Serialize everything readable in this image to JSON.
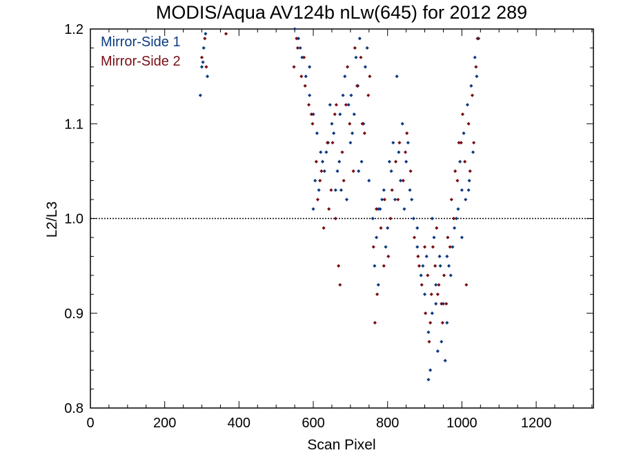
{
  "chart_data": {
    "type": "scatter",
    "title": "MODIS/Aqua AV124b nLw(645) for 2012 289",
    "xlabel": "Scan Pixel",
    "ylabel": "L2/L3",
    "xlim": [
      0,
      1354
    ],
    "ylim": [
      0.8,
      1.2
    ],
    "x_ticks": [
      0,
      200,
      400,
      600,
      800,
      1000,
      1200
    ],
    "x_tick_labels": [
      "0",
      "200",
      "400",
      "600",
      "800",
      "1000",
      "1200"
    ],
    "y_ticks": [
      0.8,
      0.9,
      1.0,
      1.1,
      1.2
    ],
    "y_tick_labels": [
      "0.8",
      "0.9",
      "1.0",
      "1.1",
      "1.2"
    ],
    "reference_line": 1.0,
    "legend_position": "top-left",
    "series": [
      {
        "name": "Mirror-Side 1",
        "color": "#0a3a82",
        "points": [
          [
            296,
            1.13
          ],
          [
            300,
            1.16
          ],
          [
            305,
            1.18
          ],
          [
            310,
            1.195
          ],
          [
            315,
            1.15
          ],
          [
            303,
            1.165
          ],
          [
            560,
            1.19
          ],
          [
            570,
            1.17
          ],
          [
            580,
            1.15
          ],
          [
            590,
            1.13
          ],
          [
            600,
            1.11
          ],
          [
            610,
            1.09
          ],
          [
            620,
            1.07
          ],
          [
            630,
            1.05
          ],
          [
            640,
            1.08
          ],
          [
            650,
            1.1
          ],
          [
            660,
            1.03
          ],
          [
            670,
            1.06
          ],
          [
            680,
            1.13
          ],
          [
            690,
            1.02
          ],
          [
            700,
            1.08
          ],
          [
            710,
            1.11
          ],
          [
            720,
            1.14
          ],
          [
            730,
            1.06
          ],
          [
            740,
            1.16
          ],
          [
            750,
            1.04
          ],
          [
            600,
            1.01
          ],
          [
            615,
            1.03
          ],
          [
            625,
            1.06
          ],
          [
            645,
            1.12
          ],
          [
            655,
            1.09
          ],
          [
            665,
            1.05
          ],
          [
            675,
            1.03
          ],
          [
            685,
            1.15
          ],
          [
            695,
            1.12
          ],
          [
            705,
            1.09
          ],
          [
            715,
            1.17
          ],
          [
            725,
            1.19
          ],
          [
            735,
            1.1
          ],
          [
            745,
            1.18
          ],
          [
            550,
            1.2
          ],
          [
            565,
            1.18
          ],
          [
            590,
            1.16
          ],
          [
            605,
            1.04
          ],
          [
            635,
            1.07
          ],
          [
            672,
            1.11
          ],
          [
            702,
            1.13
          ],
          [
            722,
            1.05
          ],
          [
            760,
            1.0
          ],
          [
            770,
            0.98
          ],
          [
            780,
            1.01
          ],
          [
            790,
            1.03
          ],
          [
            800,
            0.99
          ],
          [
            810,
            1.05
          ],
          [
            820,
            1.02
          ],
          [
            830,
            1.07
          ],
          [
            840,
            1.1
          ],
          [
            850,
            1.06
          ],
          [
            860,
            1.03
          ],
          [
            870,
            1.0
          ],
          [
            765,
            0.95
          ],
          [
            775,
            0.93
          ],
          [
            785,
            1.02
          ],
          [
            795,
            0.97
          ],
          [
            805,
            1.06
          ],
          [
            815,
            1.08
          ],
          [
            825,
            1.15
          ],
          [
            835,
            1.04
          ],
          [
            845,
            1.01
          ],
          [
            855,
            1.08
          ],
          [
            865,
            1.02
          ],
          [
            775,
            1.01
          ],
          [
            880,
            0.97
          ],
          [
            890,
            0.94
          ],
          [
            900,
            0.92
          ],
          [
            910,
            0.88
          ],
          [
            915,
            0.84
          ],
          [
            920,
            0.9
          ],
          [
            930,
            0.93
          ],
          [
            940,
            0.96
          ],
          [
            950,
            0.91
          ],
          [
            960,
            0.89
          ],
          [
            970,
            0.94
          ],
          [
            980,
            0.99
          ],
          [
            990,
            1.01
          ],
          [
            1000,
            0.98
          ],
          [
            1010,
            1.02
          ],
          [
            1020,
            1.04
          ],
          [
            1030,
            1.07
          ],
          [
            905,
            0.96
          ],
          [
            925,
            0.98
          ],
          [
            935,
            0.86
          ],
          [
            945,
            0.87
          ],
          [
            955,
            0.85
          ],
          [
            965,
            0.95
          ],
          [
            975,
            0.97
          ],
          [
            985,
            1.0
          ],
          [
            995,
            1.06
          ],
          [
            1005,
            1.09
          ],
          [
            1015,
            1.12
          ],
          [
            1025,
            1.14
          ],
          [
            1035,
            1.17
          ],
          [
            1045,
            1.19
          ],
          [
            910,
            0.83
          ],
          [
            920,
            1.0
          ],
          [
            942,
            0.95
          ],
          [
            1018,
            1.03
          ],
          [
            880,
            0.99
          ],
          [
            895,
            0.95
          ],
          [
            930,
            0.91
          ],
          [
            960,
            0.96
          ],
          [
            1000,
            1.03
          ],
          [
            1040,
            1.15
          ]
        ]
      },
      {
        "name": "Mirror-Side 2",
        "color": "#7a0c14",
        "points": [
          [
            300,
            1.17
          ],
          [
            308,
            1.19
          ],
          [
            312,
            1.16
          ],
          [
            365,
            1.195
          ],
          [
            548,
            1.16
          ],
          [
            558,
            1.18
          ],
          [
            568,
            1.15
          ],
          [
            578,
            1.14
          ],
          [
            588,
            1.12
          ],
          [
            598,
            1.1
          ],
          [
            608,
            1.06
          ],
          [
            618,
            1.04
          ],
          [
            628,
            0.99
          ],
          [
            638,
            1.08
          ],
          [
            648,
            1.03
          ],
          [
            658,
            1.11
          ],
          [
            668,
            0.95
          ],
          [
            672,
            0.93
          ],
          [
            678,
            1.07
          ],
          [
            688,
            1.12
          ],
          [
            698,
            1.1
          ],
          [
            708,
            1.05
          ],
          [
            718,
            1.14
          ],
          [
            728,
            1.17
          ],
          [
            738,
            1.09
          ],
          [
            748,
            1.13
          ],
          [
            555,
            1.19
          ],
          [
            575,
            1.17
          ],
          [
            595,
            1.11
          ],
          [
            612,
            1.02
          ],
          [
            622,
            1.05
          ],
          [
            642,
            1.01
          ],
          [
            652,
            1.08
          ],
          [
            662,
            1.12
          ],
          [
            682,
            1.04
          ],
          [
            692,
            1.16
          ],
          [
            712,
            1.18
          ],
          [
            732,
            1.1
          ],
          [
            752,
            1.15
          ],
          [
            660,
            1.0
          ],
          [
            762,
            0.97
          ],
          [
            766,
            0.89
          ],
          [
            772,
            0.92
          ],
          [
            782,
            0.99
          ],
          [
            792,
            1.02
          ],
          [
            802,
            0.96
          ],
          [
            812,
            1.03
          ],
          [
            822,
            1.06
          ],
          [
            832,
            1.08
          ],
          [
            842,
            1.04
          ],
          [
            852,
            1.09
          ],
          [
            862,
            1.05
          ],
          [
            872,
            0.98
          ],
          [
            770,
            1.01
          ],
          [
            790,
            0.95
          ],
          [
            808,
            1.0
          ],
          [
            828,
            1.02
          ],
          [
            848,
            1.07
          ],
          [
            882,
            0.96
          ],
          [
            892,
            0.93
          ],
          [
            902,
            0.9
          ],
          [
            912,
            0.87
          ],
          [
            918,
            0.92
          ],
          [
            928,
            0.95
          ],
          [
            938,
            0.93
          ],
          [
            948,
            0.89
          ],
          [
            958,
            0.91
          ],
          [
            968,
            0.97
          ],
          [
            978,
            1.0
          ],
          [
            988,
            1.04
          ],
          [
            998,
            1.08
          ],
          [
            1008,
            1.06
          ],
          [
            1012,
            0.93
          ],
          [
            1018,
            1.1
          ],
          [
            1028,
            1.13
          ],
          [
            1038,
            1.16
          ],
          [
            1042,
            1.19
          ],
          [
            908,
            0.94
          ],
          [
            922,
            0.97
          ],
          [
            932,
            0.99
          ],
          [
            945,
            0.91
          ],
          [
            952,
            0.94
          ],
          [
            972,
            1.02
          ],
          [
            982,
            1.05
          ],
          [
            992,
            1.08
          ],
          [
            1002,
            1.11
          ],
          [
            1022,
            1.05
          ],
          [
            885,
            0.95
          ],
          [
            900,
            0.97
          ],
          [
            915,
            0.89
          ],
          [
            935,
            0.92
          ],
          [
            962,
            0.98
          ],
          [
            1032,
            1.08
          ]
        ]
      }
    ]
  }
}
